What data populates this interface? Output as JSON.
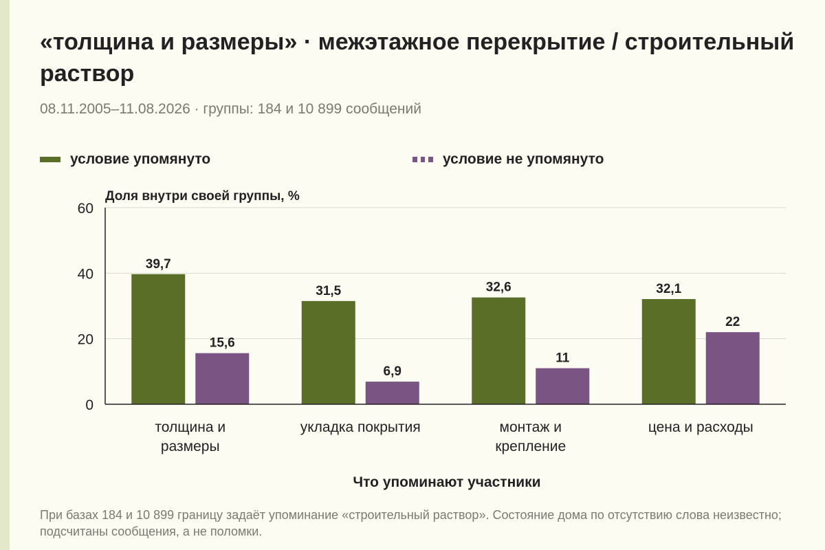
{
  "chart_data": {
    "type": "bar",
    "title": "«толщина и размеры» · межэтажное перекрытие / строительный раствор",
    "subtitle": "08.11.2005–11.08.2026 · группы: 184 и 10 899 сообщений",
    "ylabel": "Доля внутри своей группы, %",
    "xlabel": "Что упоминают участники",
    "ylim": [
      0,
      60
    ],
    "yticks": [
      "0",
      "20",
      "40",
      "60"
    ],
    "ytick_values": [
      0,
      20,
      40,
      60
    ],
    "grid": true,
    "legend_position": "top",
    "categories": [
      [
        "толщина и",
        "размеры"
      ],
      [
        "укладка покрытия"
      ],
      [
        "монтаж и",
        "крепление"
      ],
      [
        "цена и расходы"
      ]
    ],
    "series": [
      {
        "name": "условие упомянуто",
        "color": "#5a6e28",
        "values": [
          39.7,
          31.5,
          32.6,
          32.1
        ],
        "labels": [
          "39,7",
          "31,5",
          "32,6",
          "32,1"
        ]
      },
      {
        "name": "условие не упомянуто",
        "color": "#7a5482",
        "values": [
          15.6,
          6.9,
          11,
          22
        ],
        "labels": [
          "15,6",
          "6,9",
          "11",
          "22"
        ]
      }
    ],
    "note": "При базах 184 и 10 899 границу задаёт упоминание «строительный раствор». Состояние дома по отсутствию слова неизвестно; подсчитаны сообщения, а не поломки."
  }
}
